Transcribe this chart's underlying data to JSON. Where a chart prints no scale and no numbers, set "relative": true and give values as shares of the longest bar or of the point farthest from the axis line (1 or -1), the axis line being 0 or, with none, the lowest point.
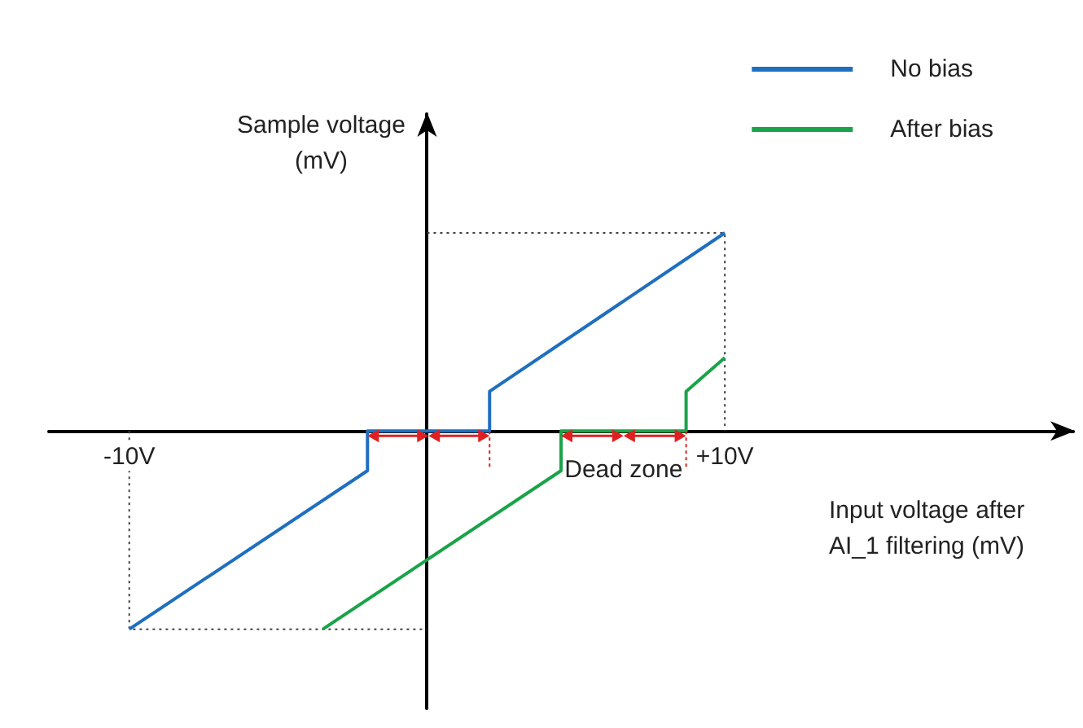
{
  "chart_data": {
    "type": "line",
    "relative": true,
    "xlabel": "Input voltage after\nAI_1 filtering (mV)",
    "ylabel": "Sample voltage\n(mV)",
    "xlim": [
      -12.7,
      21.7
    ],
    "xticks": [
      {
        "value": -10,
        "label": "-10V"
      },
      {
        "value": 10,
        "label": "+10V"
      }
    ],
    "grid": false,
    "legend": "top right",
    "marker": "none",
    "annotations": [
      "Dead zone"
    ],
    "series": [
      {
        "name": "No bias",
        "color": "#1f6fbf",
        "x": [
          -10,
          -2,
          -2,
          2.1,
          2.1,
          10
        ],
        "values": [
          -1,
          -0.2,
          0,
          0,
          0.2,
          1
        ]
      },
      {
        "name": "After bias",
        "color": "#1aa34a",
        "x": [
          -3.5,
          4.5,
          4.5,
          8.7,
          8.7,
          10
        ],
        "values": [
          -1,
          -0.2,
          0,
          0,
          0.2,
          0.37
        ]
      },
      {
        "color": "#404040",
        "line_style": "dotted",
        "x": [
          -10,
          -10,
          0
        ],
        "values": [
          0,
          -1,
          -1
        ]
      },
      {
        "color": "#404040",
        "line_style": "dotted",
        "x": [
          0,
          10,
          10
        ],
        "values": [
          1,
          1,
          0
        ]
      }
    ]
  }
}
